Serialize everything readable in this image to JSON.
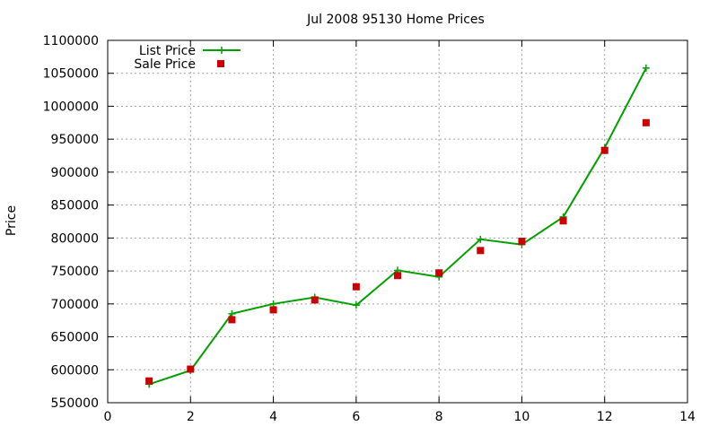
{
  "chart_data": {
    "type": "line",
    "title": "Jul 2008 95130 Home Prices",
    "xlabel": "",
    "ylabel": "Price",
    "xlim": [
      0,
      14
    ],
    "ylim": [
      550000,
      1100000
    ],
    "x_ticks": [
      0,
      2,
      4,
      6,
      8,
      10,
      12,
      14
    ],
    "y_ticks": [
      550000,
      600000,
      650000,
      700000,
      750000,
      800000,
      850000,
      900000,
      950000,
      1000000,
      1050000,
      1100000
    ],
    "grid": true,
    "legend_position": "top-left",
    "series": [
      {
        "name": "List Price",
        "style": "line-with-plus-markers",
        "color": "#00a000",
        "x": [
          1,
          2,
          3,
          4,
          5,
          6,
          7,
          8,
          9,
          10,
          11,
          12,
          13
        ],
        "y": [
          578000,
          599000,
          685000,
          700000,
          710000,
          698000,
          751000,
          741000,
          798000,
          790000,
          832000,
          937000,
          1058000
        ]
      },
      {
        "name": "Sale Price",
        "style": "square-markers",
        "color": "#cc0000",
        "x": [
          1,
          2,
          3,
          4,
          5,
          6,
          7,
          8,
          9,
          10,
          11,
          12,
          13
        ],
        "y": [
          583000,
          601000,
          676000,
          691000,
          706000,
          726000,
          743000,
          747000,
          781000,
          795000,
          826000,
          933000,
          975000
        ]
      }
    ]
  }
}
